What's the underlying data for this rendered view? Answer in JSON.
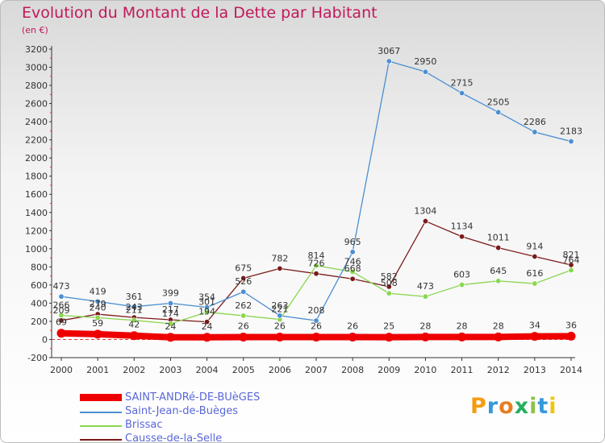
{
  "header": {
    "title": "Evolution du Montant de la Dette par Habitant",
    "subtitle": "(en €)"
  },
  "logo": {
    "text": "Proxiti"
  },
  "chart_data": {
    "type": "line",
    "title": "Evolution du Montant de la Dette par Habitant",
    "subtitle": "(en €)",
    "x": [
      2000,
      2001,
      2002,
      2003,
      2004,
      2005,
      2006,
      2007,
      2008,
      2009,
      2010,
      2011,
      2012,
      2013,
      2014
    ],
    "ylim": [
      -200,
      3200
    ],
    "ystep": 200,
    "grid": false,
    "legend_position": "bottom-left",
    "series": [
      {
        "name": "SAINT-ANDRé-DE-BUèGES",
        "color": "#ee0000",
        "values": [
          69,
          59,
          42,
          24,
          24,
          26,
          26,
          26,
          26,
          25,
          28,
          28,
          28,
          34,
          36
        ]
      },
      {
        "name": "Saint-Jean-de-Buèges",
        "color": "#4b8fd1",
        "values": [
          473,
          419,
          361,
          399,
          354,
          526,
          263,
          208,
          965,
          3067,
          2950,
          2715,
          2505,
          2286,
          2183
        ]
      },
      {
        "name": "Brissac",
        "color": "#8bd650",
        "values": [
          266,
          240,
          211,
          174,
          301,
          262,
          221,
          814,
          746,
          508,
          473,
          603,
          645,
          616,
          764
        ]
      },
      {
        "name": "Causse-de-la-Selle",
        "color": "#7b1a1a",
        "values": [
          209,
          279,
          243,
          217,
          194,
          675,
          782,
          726,
          668,
          582,
          1304,
          1134,
          1011,
          914,
          821
        ]
      }
    ]
  }
}
